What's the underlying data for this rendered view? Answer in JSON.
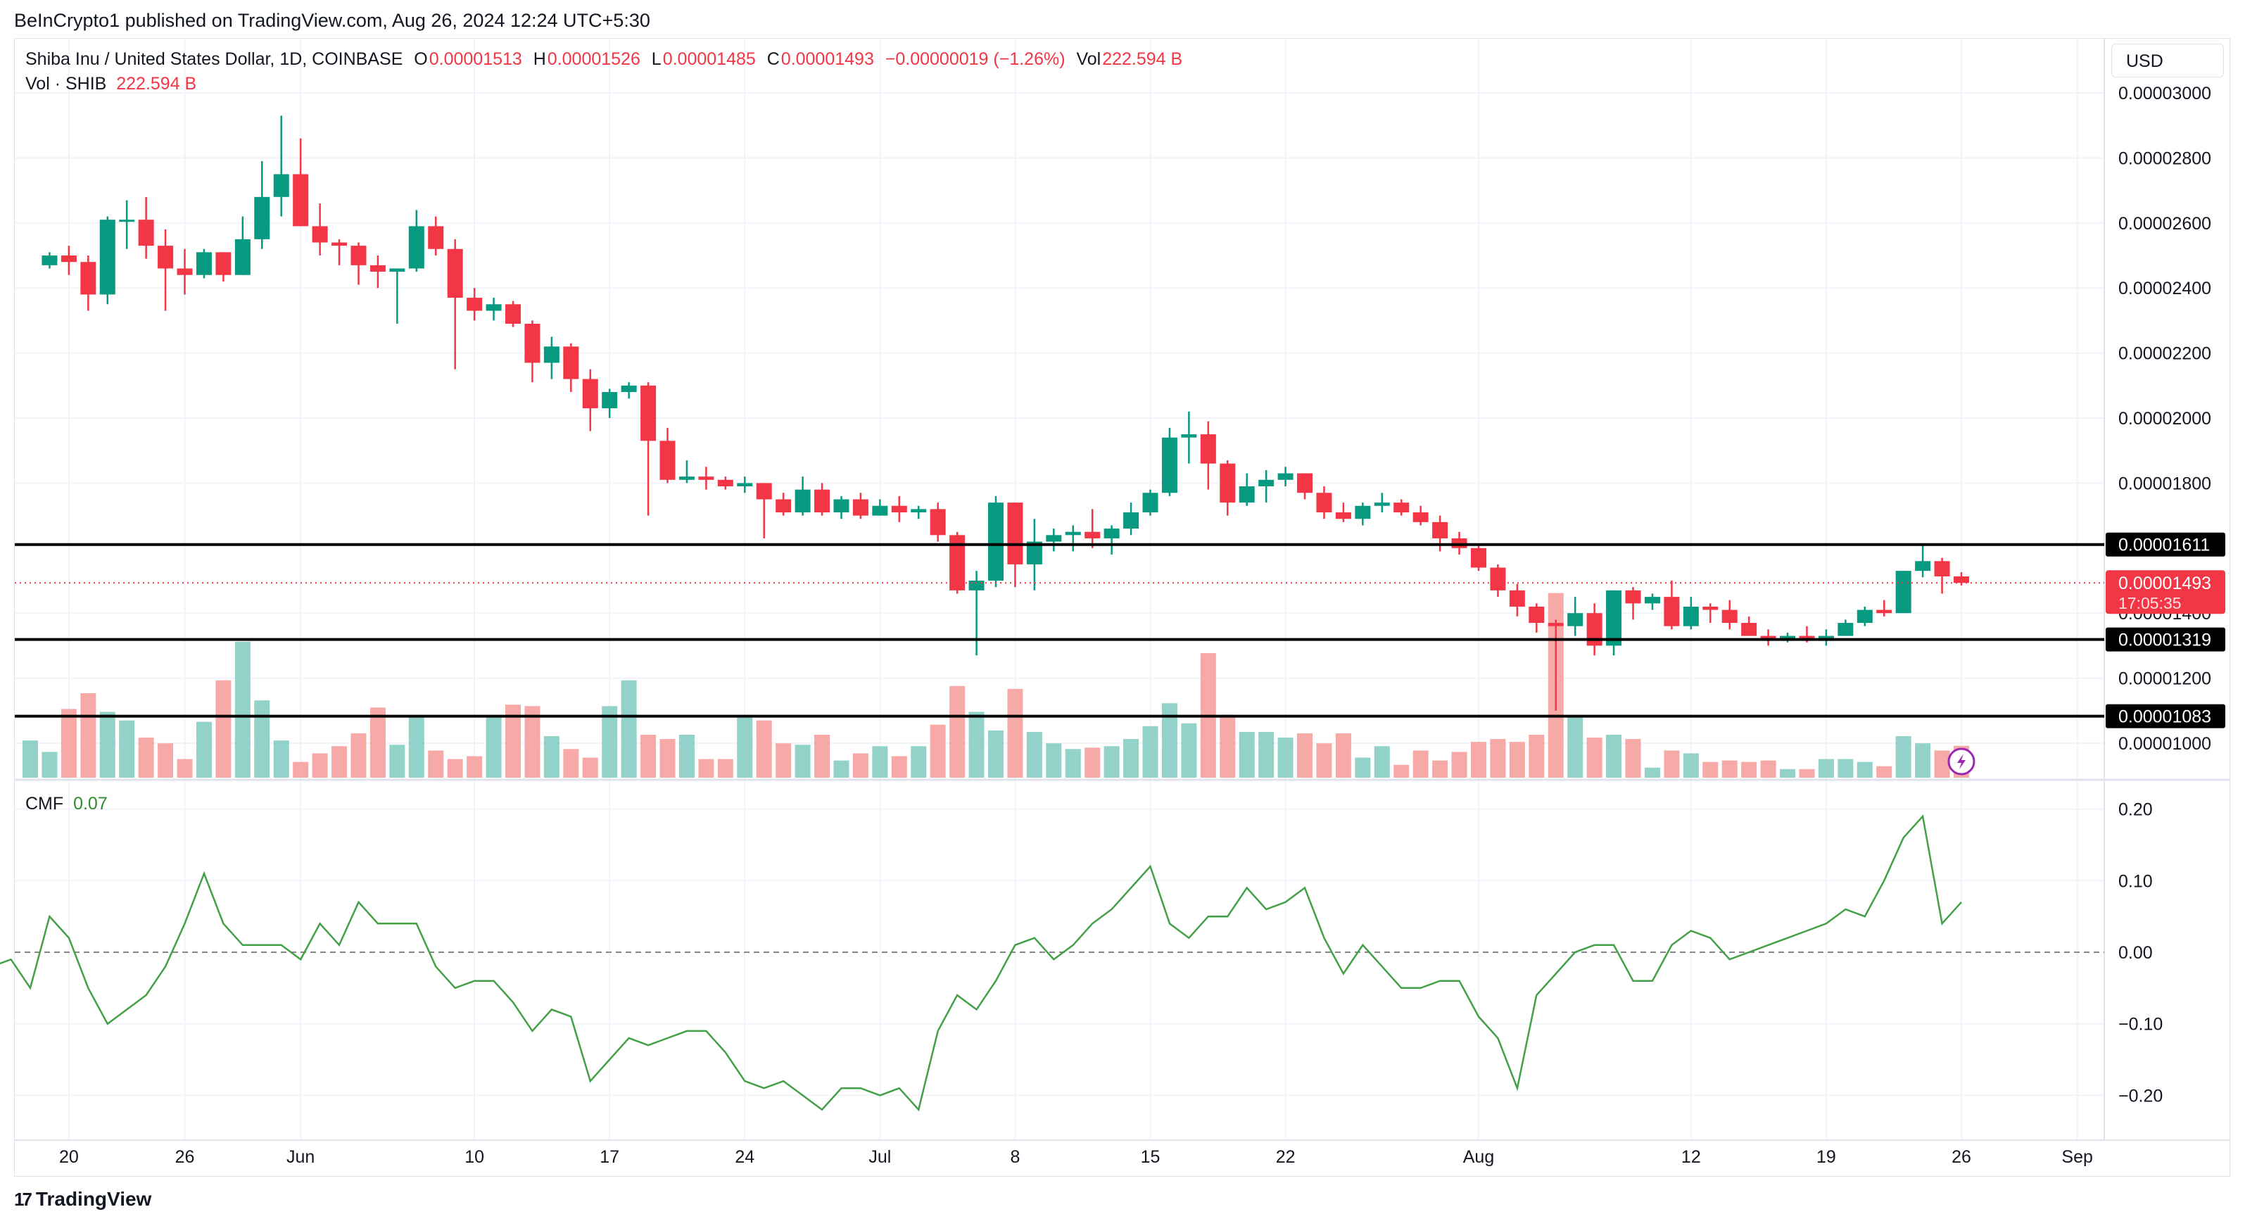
{
  "header": {
    "published": "BeInCrypto1 published on TradingView.com, Aug 26, 2024 12:24 UTC+5:30"
  },
  "legend": {
    "symbol": "Shiba Inu / United States Dollar, 1D, COINBASE",
    "o_label": "O",
    "o": "0.00001513",
    "h_label": "H",
    "h": "0.00001526",
    "l_label": "L",
    "l": "0.00001485",
    "c_label": "C",
    "c": "0.00001493",
    "change": "−0.00000019 (−1.26%)",
    "vol_label": "Vol",
    "vol": "222.594 B"
  },
  "volume_legend": {
    "label": "Vol · SHIB",
    "value": "222.594 B"
  },
  "cmf_legend": {
    "label": "CMF",
    "value": "0.07"
  },
  "currency": "USD",
  "footer": {
    "brand": "TradingView",
    "logo": "17"
  },
  "colors": {
    "up": "#089981",
    "down": "#F23645",
    "vol_up": "#92D2C8",
    "vol_down": "#F7A9A7",
    "cmf": "#43A047",
    "level": "#000000"
  },
  "chart_data": [
    {
      "type": "candlestick",
      "title": "Shiba Inu / United States Dollar, 1D, COINBASE",
      "units": "1e-5 USD",
      "ylim": [
        0.95,
        3.1
      ],
      "y_ticks": [
        {
          "value": 3.0,
          "label": "0.00003000"
        },
        {
          "value": 2.8,
          "label": "0.00002800"
        },
        {
          "value": 2.6,
          "label": "0.00002600"
        },
        {
          "value": 2.4,
          "label": "0.00002400"
        },
        {
          "value": 2.2,
          "label": "0.00002200"
        },
        {
          "value": 2.0,
          "label": "0.00002000"
        },
        {
          "value": 1.8,
          "label": "0.00001800"
        },
        {
          "value": 1.4,
          "label": "0.00001400"
        },
        {
          "value": 1.2,
          "label": "0.00001200"
        },
        {
          "value": 1.0,
          "label": "0.00001000"
        }
      ],
      "levels": [
        {
          "value": 1.611,
          "label": "0.00001611"
        },
        {
          "value": 1.319,
          "label": "0.00001319"
        },
        {
          "value": 1.083,
          "label": "0.00001083"
        }
      ],
      "last_price": {
        "value": 1.493,
        "label": "0.00001493",
        "countdown": "17:05:35"
      },
      "x_ticks": [
        {
          "day": 2,
          "label": "20"
        },
        {
          "day": 8,
          "label": "26"
        },
        {
          "day": 14,
          "label": "Jun"
        },
        {
          "day": 23,
          "label": "10"
        },
        {
          "day": 30,
          "label": "17"
        },
        {
          "day": 37,
          "label": "24"
        },
        {
          "day": 44,
          "label": "Jul"
        },
        {
          "day": 51,
          "label": "8"
        },
        {
          "day": 58,
          "label": "15"
        },
        {
          "day": 65,
          "label": "22"
        },
        {
          "day": 75,
          "label": "Aug"
        },
        {
          "day": 86,
          "label": "12"
        },
        {
          "day": 93,
          "label": "19"
        },
        {
          "day": 100,
          "label": "26"
        },
        {
          "day": 106,
          "label": "Sep"
        }
      ],
      "ohlc": [
        [
          2.47,
          2.51,
          2.46,
          2.5
        ],
        [
          2.5,
          2.53,
          2.44,
          2.48
        ],
        [
          2.48,
          2.5,
          2.33,
          2.38
        ],
        [
          2.38,
          2.62,
          2.35,
          2.61
        ],
        [
          2.61,
          2.67,
          2.52,
          2.61
        ],
        [
          2.61,
          2.68,
          2.49,
          2.53
        ],
        [
          2.53,
          2.58,
          2.33,
          2.46
        ],
        [
          2.46,
          2.52,
          2.38,
          2.44
        ],
        [
          2.44,
          2.52,
          2.43,
          2.51
        ],
        [
          2.51,
          2.51,
          2.42,
          2.44
        ],
        [
          2.44,
          2.62,
          2.44,
          2.55
        ],
        [
          2.55,
          2.79,
          2.52,
          2.68
        ],
        [
          2.68,
          2.93,
          2.62,
          2.75
        ],
        [
          2.75,
          2.86,
          2.6,
          2.59
        ],
        [
          2.59,
          2.66,
          2.5,
          2.54
        ],
        [
          2.54,
          2.55,
          2.47,
          2.53
        ],
        [
          2.53,
          2.54,
          2.41,
          2.47
        ],
        [
          2.47,
          2.5,
          2.4,
          2.45
        ],
        [
          2.45,
          2.46,
          2.29,
          2.46
        ],
        [
          2.46,
          2.64,
          2.45,
          2.59
        ],
        [
          2.59,
          2.62,
          2.5,
          2.52
        ],
        [
          2.52,
          2.55,
          2.15,
          2.37
        ],
        [
          2.37,
          2.4,
          2.3,
          2.33
        ],
        [
          2.33,
          2.37,
          2.3,
          2.35
        ],
        [
          2.35,
          2.36,
          2.28,
          2.29
        ],
        [
          2.29,
          2.3,
          2.11,
          2.17
        ],
        [
          2.17,
          2.25,
          2.12,
          2.22
        ],
        [
          2.22,
          2.23,
          2.08,
          2.12
        ],
        [
          2.12,
          2.15,
          1.96,
          2.03
        ],
        [
          2.03,
          2.09,
          2.0,
          2.08
        ],
        [
          2.08,
          2.11,
          2.06,
          2.1
        ],
        [
          2.1,
          2.11,
          1.7,
          1.93
        ],
        [
          1.93,
          1.97,
          1.8,
          1.81
        ],
        [
          1.81,
          1.87,
          1.8,
          1.82
        ],
        [
          1.82,
          1.85,
          1.78,
          1.81
        ],
        [
          1.81,
          1.82,
          1.78,
          1.79
        ],
        [
          1.79,
          1.82,
          1.77,
          1.8
        ],
        [
          1.8,
          1.8,
          1.63,
          1.75
        ],
        [
          1.75,
          1.77,
          1.7,
          1.71
        ],
        [
          1.71,
          1.82,
          1.7,
          1.78
        ],
        [
          1.78,
          1.8,
          1.7,
          1.71
        ],
        [
          1.71,
          1.76,
          1.69,
          1.75
        ],
        [
          1.75,
          1.77,
          1.69,
          1.7
        ],
        [
          1.7,
          1.75,
          1.7,
          1.73
        ],
        [
          1.73,
          1.76,
          1.68,
          1.71
        ],
        [
          1.71,
          1.73,
          1.69,
          1.72
        ],
        [
          1.72,
          1.74,
          1.62,
          1.64
        ],
        [
          1.64,
          1.65,
          1.46,
          1.47
        ],
        [
          1.47,
          1.53,
          1.27,
          1.5
        ],
        [
          1.5,
          1.76,
          1.48,
          1.74
        ],
        [
          1.74,
          1.74,
          1.48,
          1.55
        ],
        [
          1.55,
          1.69,
          1.47,
          1.62
        ],
        [
          1.62,
          1.66,
          1.59,
          1.64
        ],
        [
          1.64,
          1.67,
          1.59,
          1.65
        ],
        [
          1.65,
          1.72,
          1.6,
          1.63
        ],
        [
          1.63,
          1.67,
          1.58,
          1.66
        ],
        [
          1.66,
          1.74,
          1.64,
          1.71
        ],
        [
          1.71,
          1.78,
          1.7,
          1.77
        ],
        [
          1.77,
          1.97,
          1.76,
          1.94
        ],
        [
          1.94,
          2.02,
          1.86,
          1.95
        ],
        [
          1.95,
          1.99,
          1.78,
          1.86
        ],
        [
          1.86,
          1.87,
          1.7,
          1.74
        ],
        [
          1.74,
          1.83,
          1.73,
          1.79
        ],
        [
          1.79,
          1.84,
          1.74,
          1.81
        ],
        [
          1.81,
          1.85,
          1.79,
          1.83
        ],
        [
          1.83,
          1.83,
          1.75,
          1.77
        ],
        [
          1.77,
          1.79,
          1.69,
          1.71
        ],
        [
          1.71,
          1.74,
          1.68,
          1.69
        ],
        [
          1.69,
          1.74,
          1.67,
          1.73
        ],
        [
          1.73,
          1.77,
          1.71,
          1.74
        ],
        [
          1.74,
          1.75,
          1.7,
          1.71
        ],
        [
          1.71,
          1.73,
          1.67,
          1.68
        ],
        [
          1.68,
          1.7,
          1.59,
          1.63
        ],
        [
          1.63,
          1.65,
          1.58,
          1.6
        ],
        [
          1.6,
          1.61,
          1.53,
          1.54
        ],
        [
          1.54,
          1.55,
          1.45,
          1.47
        ],
        [
          1.47,
          1.49,
          1.39,
          1.42
        ],
        [
          1.42,
          1.43,
          1.34,
          1.37
        ],
        [
          1.37,
          1.38,
          1.1,
          1.36
        ],
        [
          1.36,
          1.45,
          1.33,
          1.4
        ],
        [
          1.4,
          1.43,
          1.27,
          1.3
        ],
        [
          1.3,
          1.47,
          1.27,
          1.47
        ],
        [
          1.47,
          1.48,
          1.38,
          1.43
        ],
        [
          1.43,
          1.46,
          1.41,
          1.45
        ],
        [
          1.45,
          1.5,
          1.35,
          1.36
        ],
        [
          1.36,
          1.45,
          1.35,
          1.42
        ],
        [
          1.42,
          1.43,
          1.37,
          1.41
        ],
        [
          1.41,
          1.44,
          1.35,
          1.37
        ],
        [
          1.37,
          1.39,
          1.33,
          1.33
        ],
        [
          1.33,
          1.35,
          1.3,
          1.32
        ],
        [
          1.32,
          1.34,
          1.31,
          1.33
        ],
        [
          1.33,
          1.36,
          1.31,
          1.32
        ],
        [
          1.32,
          1.35,
          1.3,
          1.33
        ],
        [
          1.33,
          1.38,
          1.33,
          1.37
        ],
        [
          1.37,
          1.42,
          1.36,
          1.41
        ],
        [
          1.41,
          1.44,
          1.39,
          1.4
        ],
        [
          1.4,
          1.53,
          1.4,
          1.53
        ],
        [
          1.53,
          1.611,
          1.51,
          1.56
        ],
        [
          1.56,
          1.57,
          1.46,
          1.513
        ],
        [
          1.513,
          1.526,
          1.485,
          1.493
        ]
      ],
      "volume_b": [
        260,
        180,
        480,
        590,
        460,
        400,
        280,
        240,
        130,
        390,
        680,
        950,
        540,
        260,
        110,
        170,
        220,
        310,
        490,
        230,
        430,
        190,
        130,
        150,
        430,
        510,
        500,
        290,
        200,
        140,
        500,
        680,
        300,
        270,
        300,
        130,
        130,
        420,
        400,
        240,
        230,
        300,
        120,
        170,
        220,
        150,
        220,
        370,
        640,
        460,
        330,
        620,
        320,
        240,
        200,
        210,
        220,
        270,
        360,
        520,
        380,
        870,
        440,
        320,
        320,
        280,
        310,
        240,
        310,
        140,
        220,
        90,
        190,
        120,
        180,
        250,
        270,
        250,
        300,
        1290,
        430,
        280,
        300,
        270,
        70,
        190,
        170,
        110,
        120,
        110,
        120,
        60,
        60,
        130,
        130,
        110,
        80,
        290,
        240,
        190,
        222.594
      ]
    },
    {
      "type": "line",
      "title": "CMF",
      "ylim": [
        -0.25,
        0.23
      ],
      "y_ticks": [
        {
          "value": 0.2,
          "label": "0.20"
        },
        {
          "value": 0.1,
          "label": "0.10"
        },
        {
          "value": 0.0,
          "label": "0.00"
        },
        {
          "value": -0.1,
          "label": "−0.10"
        },
        {
          "value": -0.2,
          "label": "−0.20"
        }
      ],
      "values": [
        -0.02,
        -0.01,
        -0.05,
        0.05,
        0.02,
        -0.05,
        -0.1,
        -0.08,
        -0.06,
        -0.02,
        0.04,
        0.11,
        0.04,
        0.01,
        0.01,
        0.01,
        -0.01,
        0.04,
        0.01,
        0.07,
        0.04,
        0.04,
        0.04,
        -0.02,
        -0.05,
        -0.04,
        -0.04,
        -0.07,
        -0.11,
        -0.08,
        -0.09,
        -0.18,
        -0.15,
        -0.12,
        -0.13,
        -0.12,
        -0.11,
        -0.11,
        -0.14,
        -0.18,
        -0.19,
        -0.18,
        -0.2,
        -0.22,
        -0.19,
        -0.19,
        -0.2,
        -0.19,
        -0.22,
        -0.11,
        -0.06,
        -0.08,
        -0.04,
        0.01,
        0.02,
        -0.01,
        0.01,
        0.04,
        0.06,
        0.09,
        0.12,
        0.04,
        0.02,
        0.05,
        0.05,
        0.09,
        0.06,
        0.07,
        0.09,
        0.02,
        -0.03,
        0.01,
        -0.02,
        -0.05,
        -0.05,
        -0.04,
        -0.04,
        -0.09,
        -0.12,
        -0.19,
        -0.06,
        -0.03,
        0.0,
        0.01,
        0.01,
        -0.04,
        -0.04,
        0.01,
        0.03,
        0.02,
        -0.01,
        0.0,
        0.01,
        0.02,
        0.03,
        0.04,
        0.06,
        0.05,
        0.1,
        0.16,
        0.19,
        0.04,
        0.07
      ]
    }
  ]
}
